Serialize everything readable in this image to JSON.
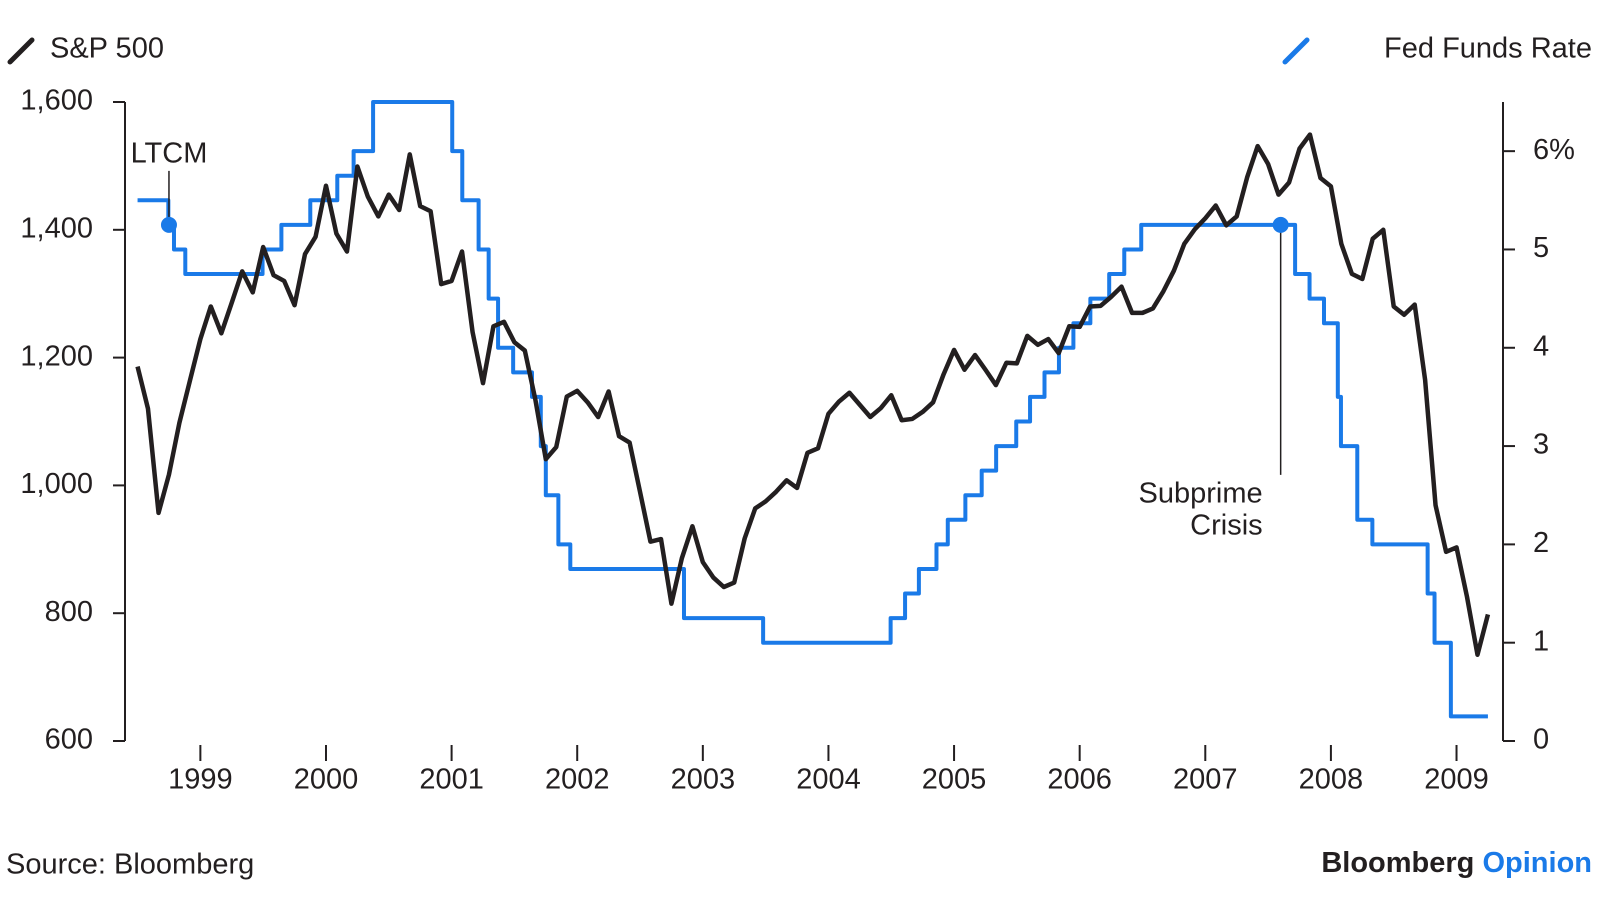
{
  "chart_data": {
    "type": "line",
    "series": [
      {
        "name": "S&P 500",
        "color": "#231f20",
        "axis": "y",
        "x": [
          1998.5,
          1998.583,
          1998.667,
          1998.75,
          1998.833,
          1998.917,
          1999,
          1999.083,
          1999.167,
          1999.25,
          1999.333,
          1999.417,
          1999.5,
          1999.583,
          1999.667,
          1999.75,
          1999.833,
          1999.917,
          2000,
          2000.083,
          2000.167,
          2000.25,
          2000.333,
          2000.417,
          2000.5,
          2000.583,
          2000.667,
          2000.75,
          2000.833,
          2000.917,
          2001,
          2001.083,
          2001.167,
          2001.25,
          2001.333,
          2001.417,
          2001.5,
          2001.583,
          2001.667,
          2001.75,
          2001.833,
          2001.917,
          2002,
          2002.083,
          2002.167,
          2002.25,
          2002.333,
          2002.417,
          2002.5,
          2002.583,
          2002.667,
          2002.75,
          2002.833,
          2002.917,
          2003,
          2003.083,
          2003.167,
          2003.25,
          2003.333,
          2003.417,
          2003.5,
          2003.583,
          2003.667,
          2003.75,
          2003.833,
          2003.917,
          2004,
          2004.083,
          2004.167,
          2004.25,
          2004.333,
          2004.417,
          2004.5,
          2004.583,
          2004.667,
          2004.75,
          2004.833,
          2004.917,
          2005,
          2005.083,
          2005.167,
          2005.25,
          2005.333,
          2005.417,
          2005.5,
          2005.583,
          2005.667,
          2005.75,
          2005.833,
          2005.917,
          2006,
          2006.083,
          2006.167,
          2006.25,
          2006.333,
          2006.417,
          2006.5,
          2006.583,
          2006.667,
          2006.75,
          2006.833,
          2006.917,
          2007,
          2007.083,
          2007.167,
          2007.25,
          2007.333,
          2007.417,
          2007.5,
          2007.583,
          2007.667,
          2007.75,
          2007.833,
          2007.917,
          2008,
          2008.083,
          2008.167,
          2008.25,
          2008.333,
          2008.417,
          2008.5,
          2008.583,
          2008.667,
          2008.75,
          2008.833,
          2008.917,
          2009,
          2009.083,
          2009.167,
          2009.25
        ],
        "values": [
          1186,
          1120,
          957,
          1017,
          1098,
          1164,
          1229,
          1280,
          1238,
          1286,
          1335,
          1302,
          1373,
          1329,
          1320,
          1282,
          1362,
          1389,
          1469,
          1394,
          1366,
          1499,
          1452,
          1421,
          1455,
          1431,
          1518,
          1437,
          1429,
          1315,
          1320,
          1366,
          1240,
          1160,
          1249,
          1256,
          1224,
          1211,
          1134,
          1041,
          1060,
          1139,
          1148,
          1130,
          1107,
          1147,
          1077,
          1067,
          990,
          912,
          916,
          815,
          886,
          936,
          880,
          856,
          841,
          848,
          917,
          964,
          975,
          990,
          1008,
          996,
          1051,
          1058,
          1112,
          1131,
          1145,
          1126,
          1107,
          1121,
          1141,
          1102,
          1104,
          1115,
          1130,
          1174,
          1212,
          1181,
          1204,
          1181,
          1157,
          1192,
          1191,
          1234,
          1220,
          1229,
          1207,
          1249,
          1248,
          1280,
          1281,
          1295,
          1311,
          1270,
          1270,
          1277,
          1304,
          1336,
          1378,
          1401,
          1418,
          1438,
          1407,
          1421,
          1482,
          1531,
          1503,
          1455,
          1474,
          1527,
          1549,
          1481,
          1468,
          1378,
          1331,
          1323,
          1386,
          1400,
          1280,
          1267,
          1283,
          1165,
          969,
          896,
          903,
          826,
          735,
          798
        ]
      },
      {
        "name": "Fed Funds Rate",
        "color": "#1a7ae8",
        "axis": "y2",
        "step": true,
        "x": [
          1998.5,
          1998.745,
          1998.79,
          1998.88,
          1999.495,
          1999.645,
          1999.875,
          2000.09,
          2000.22,
          2000.375,
          2001.005,
          2001.085,
          2001.215,
          2001.295,
          2001.37,
          2001.49,
          2001.64,
          2001.71,
          2001.75,
          2001.85,
          2001.945,
          2002.85,
          2003.48,
          2004.495,
          2004.61,
          2004.72,
          2004.86,
          2004.95,
          2005.09,
          2005.22,
          2005.335,
          2005.495,
          2005.605,
          2005.72,
          2005.835,
          2005.95,
          2006.085,
          2006.235,
          2006.355,
          2006.49,
          2007.715,
          2007.83,
          2007.945,
          2008.055,
          2008.08,
          2008.21,
          2008.33,
          2008.77,
          2008.825,
          2008.955,
          2009.25
        ],
        "values": [
          5.5,
          5.25,
          5,
          4.75,
          5,
          5.25,
          5.5,
          5.75,
          6,
          6.5,
          6,
          5.5,
          5,
          4.5,
          4,
          3.75,
          3.5,
          3,
          2.5,
          2,
          1.75,
          1.25,
          1,
          1.25,
          1.5,
          1.75,
          2,
          2.25,
          2.5,
          2.75,
          3,
          3.25,
          3.5,
          3.75,
          4,
          4.25,
          4.5,
          4.75,
          5,
          5.25,
          4.75,
          4.5,
          4.25,
          3.5,
          3,
          2.25,
          2,
          1.5,
          1,
          0.25,
          0.25
        ]
      }
    ],
    "xlim": [
      1998.4,
      2009.37
    ],
    "xticks": [
      1999,
      2000,
      2001,
      2002,
      2003,
      2004,
      2005,
      2006,
      2007,
      2008,
      2009
    ],
    "ylim": [
      600,
      1600
    ],
    "yticks": [
      600,
      800,
      {
        "value": 1000,
        "label": "1,000"
      },
      {
        "value": 1200,
        "label": "1,200"
      },
      {
        "value": 1400,
        "label": "1,400"
      },
      {
        "value": 1600,
        "label": "1,600"
      }
    ],
    "y2lim": [
      0,
      6.5
    ],
    "y2ticks": [
      0,
      1,
      2,
      3,
      4,
      5,
      {
        "value": 6,
        "label": "6%"
      }
    ],
    "annotations": [
      {
        "lines": [
          "LTCM"
        ],
        "x": 1998.75,
        "y": 5.25
      },
      {
        "lines": [
          "Subprime",
          "Crisis"
        ],
        "x": 2007.6,
        "y": 5.25
      }
    ],
    "source": "Source: Bloomberg",
    "brand": {
      "name": "Bloomberg",
      "sub": "Opinion"
    }
  }
}
